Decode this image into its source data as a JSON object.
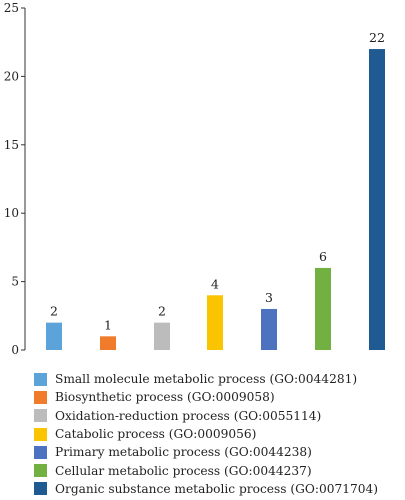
{
  "chart_data": {
    "type": "bar",
    "categories": [
      "Small molecule metabolic process (GO:0044281)",
      "Biosynthetic process (GO:0009058)",
      "Oxidation-reduction process (GO:0055114)",
      "Catabolic process (GO:0009056)",
      "Primary metabolic process (GO:0044238)",
      "Cellular metabolic process (GO:0044237)",
      "Organic substance metabolic process (GO:0071704)"
    ],
    "values": [
      2,
      1,
      2,
      4,
      3,
      6,
      22
    ],
    "data_labels": [
      "2",
      "1",
      "2",
      "4",
      "3",
      "6",
      "22"
    ],
    "colors": [
      "#5ba3d9",
      "#f07c2b",
      "#bcbcbc",
      "#fac400",
      "#4d72bf",
      "#72b042",
      "#1f5a92"
    ],
    "ylim": [
      0,
      25
    ],
    "yticks": [
      "0",
      "5",
      "10",
      "15",
      "20",
      "25"
    ],
    "xlabel": "",
    "ylabel": "",
    "grid": false,
    "legend_position": "bottom"
  }
}
